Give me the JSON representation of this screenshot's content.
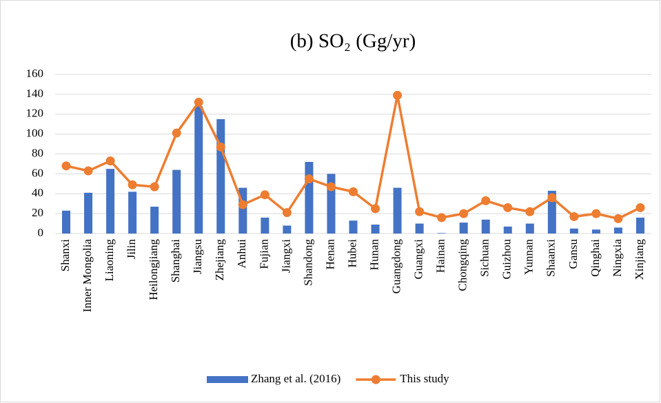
{
  "chart_data": {
    "type": "bar",
    "title": "(b) SO₂ (Gg/yr)",
    "categories": [
      "Shanxi",
      "Inner Mongolia",
      "Liaoning",
      "Jilin",
      "Heilongjiang",
      "Shanghai",
      "Jiangsu",
      "Zhejiang",
      "Anhui",
      "Fujian",
      "Jiangxi",
      "Shandong",
      "Henan",
      "Hubei",
      "Hunan",
      "Guangdong",
      "Guangxi",
      "Hainan",
      "Chongqing",
      "Sichuan",
      "Guizhou",
      "Yunnan",
      "Shaanxi",
      "Gansu",
      "Qinghai",
      "Ningxia",
      "Xinjiang"
    ],
    "series": [
      {
        "name": "Zhang et al. (2016)",
        "type": "bar",
        "color": "#4472c4",
        "values": [
          23,
          41,
          65,
          42,
          27,
          64,
          128,
          115,
          46,
          16,
          8,
          72,
          60,
          13,
          9,
          46,
          10,
          0.5,
          11,
          14,
          7,
          10,
          43,
          5,
          4,
          6,
          16
        ]
      },
      {
        "name": "This study",
        "type": "line",
        "color": "#ed7d31",
        "values": [
          68,
          63,
          73,
          49,
          47,
          101,
          132,
          87,
          29,
          39,
          21,
          55,
          47,
          42,
          25,
          139,
          22,
          16,
          20,
          33,
          26,
          22,
          36,
          17,
          20,
          15,
          26
        ]
      }
    ],
    "ylim": [
      0,
      160
    ],
    "yticks": [
      0,
      20,
      40,
      60,
      80,
      100,
      120,
      140,
      160
    ],
    "grid": true,
    "legend": "bottom"
  }
}
